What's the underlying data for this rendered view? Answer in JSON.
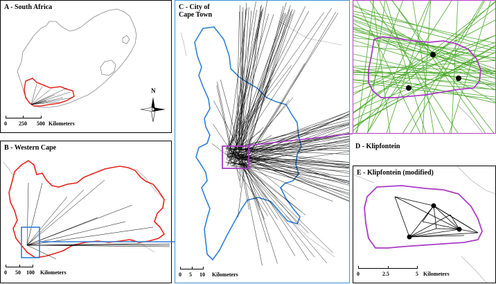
{
  "panels": {
    "a": {
      "title": "A - South Africa",
      "scale": [
        "0",
        "250",
        "500",
        "Kilometers"
      ]
    },
    "b": {
      "title": "B - Western Cape",
      "scale": [
        "0",
        "50",
        "100",
        "Kilometers"
      ]
    },
    "c": {
      "title": "C - City of\nCape Town",
      "scale": [
        "0",
        "5",
        "10",
        "Kilometers"
      ]
    },
    "d": {
      "title": "D - Klipfontein"
    },
    "e": {
      "title": "E - Klipfontein (modified)",
      "scale": [
        "0",
        "2.5",
        "5",
        "Kilometers"
      ]
    }
  },
  "compass": {
    "north_label": "N"
  },
  "colors": {
    "western_cape_boundary": "#e8231c",
    "cape_town_boundary": "#2e7fd6",
    "klipfontein_boundary": "#a93bc4",
    "country_boundary": "#888888",
    "od_lines": "#000000",
    "klipfontein_lines": "#4aa82a"
  }
}
